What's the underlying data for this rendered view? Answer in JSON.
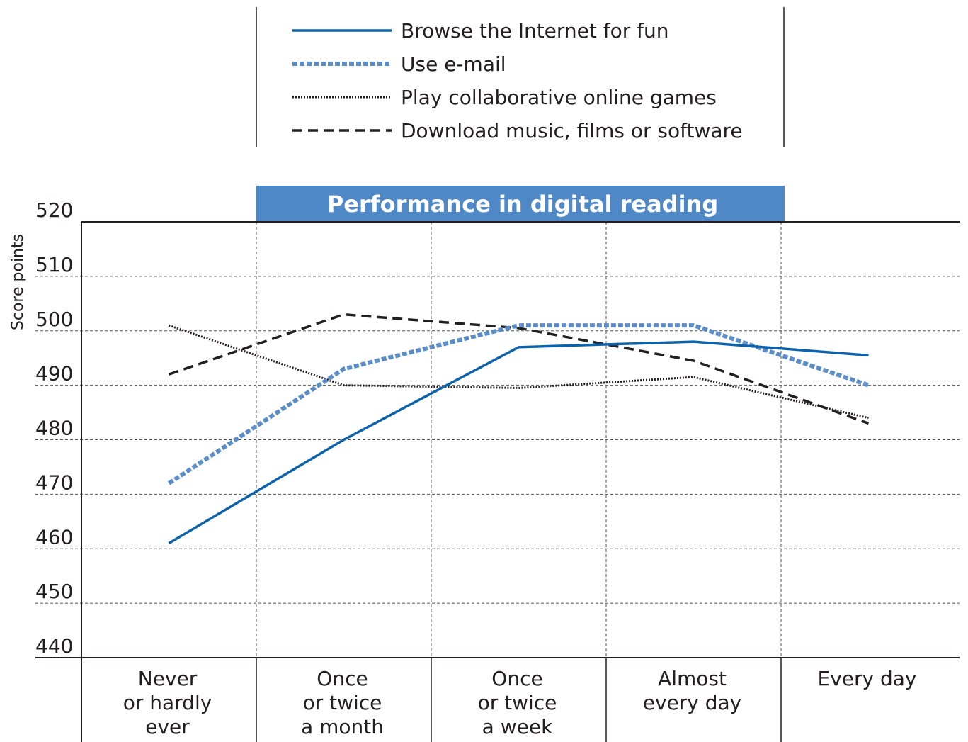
{
  "chart_data": {
    "type": "line",
    "title": "Performance in digital reading",
    "xlabel": "",
    "ylabel": "Score points",
    "ylim": [
      440,
      520
    ],
    "yticks": [
      440,
      450,
      460,
      470,
      480,
      490,
      500,
      510,
      520
    ],
    "categories": [
      [
        "Never",
        "or hardly",
        "ever"
      ],
      [
        "Once",
        "or twice",
        "a month"
      ],
      [
        "Once",
        "or twice",
        "a week"
      ],
      [
        "Almost",
        "every day"
      ],
      [
        "Every day"
      ]
    ],
    "series": [
      {
        "name": "Browse the Internet for fun",
        "style": "solid",
        "color": "#0d63ab",
        "values": [
          461,
          480,
          497,
          498,
          495.5
        ]
      },
      {
        "name": "Use e-mail",
        "style": "thick-dotted",
        "color": "#5b8ec9",
        "values": [
          472,
          493,
          501,
          501,
          490
        ]
      },
      {
        "name": "Play collaborative online games",
        "style": "dotted",
        "color": "#231f20",
        "values": [
          501,
          490,
          489.5,
          491.5,
          484
        ]
      },
      {
        "name": "Download music, films or software",
        "style": "dashed",
        "color": "#231f20",
        "values": [
          492,
          503,
          500.5,
          494.5,
          483
        ]
      }
    ],
    "grid": true,
    "legend_position": "top-center"
  },
  "colors": {
    "title_bar": "#4f88c6",
    "axis": "#231f20",
    "grid": "#555555"
  }
}
